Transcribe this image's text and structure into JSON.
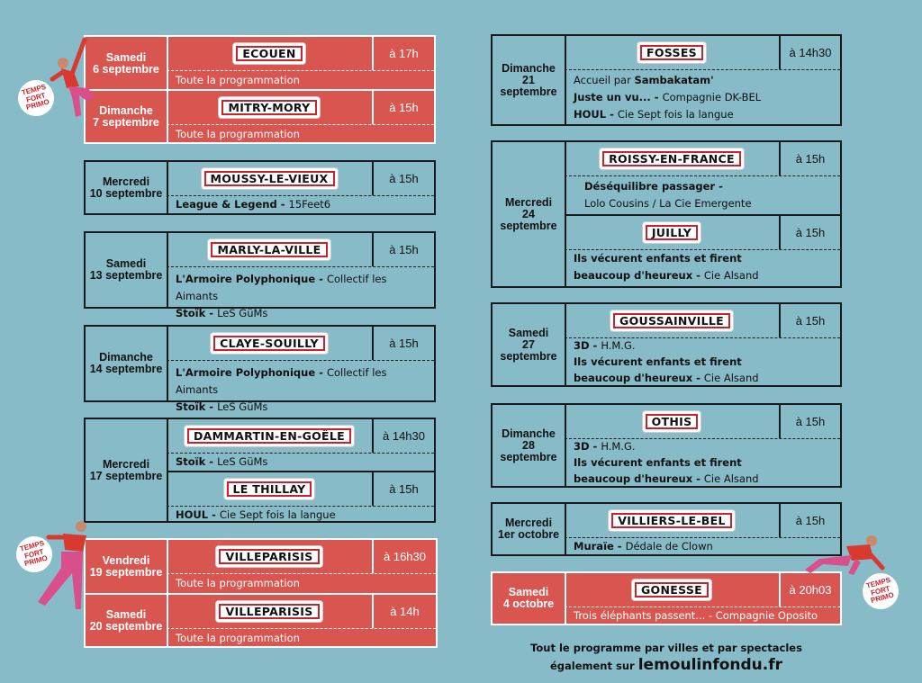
{
  "badge_text": "TEMPS FORT PRIMO",
  "footer": {
    "line1": "Tout le programme par villes et par spectacles",
    "line2_prefix": "également sur",
    "site": "lemoulinfondu.fr"
  },
  "events": [
    {
      "day": "Samedi",
      "date": "6 septembre",
      "city": "ECOUEN",
      "time": "à 17h",
      "lines": [
        [
          "",
          "Toute la programmation"
        ]
      ]
    },
    {
      "day": "Dimanche",
      "date": "7 septembre",
      "city": "MITRY-MORY",
      "time": "à 15h",
      "lines": [
        [
          "",
          "Toute la programmation"
        ]
      ]
    },
    {
      "day": "Mercredi",
      "date": "10 septembre",
      "city": "MOUSSY-LE-VIEUX",
      "time": "à 15h",
      "lines": [
        [
          "League & Legend - ",
          "15Feet6"
        ]
      ]
    },
    {
      "day": "Samedi",
      "date": "13 septembre",
      "city": "MARLY-LA-VILLE",
      "time": "à 15h",
      "lines": [
        [
          "L'Armoire Polyphonique - ",
          "Collectif les Aimants"
        ],
        [
          "Stoïk - ",
          "LeS GüMs"
        ]
      ]
    },
    {
      "day": "Dimanche",
      "date": "14 septembre",
      "city": "CLAYE-SOUILLY",
      "time": "à 15h",
      "lines": [
        [
          "L'Armoire Polyphonique - ",
          "Collectif les Aimants"
        ],
        [
          "Stoïk - ",
          "LeS GüMs"
        ]
      ]
    },
    {
      "day": "Mercredi",
      "date": "17 septembre",
      "city": "DAMMARTIN-EN-GOËLE",
      "time": "à 14h30",
      "lines": [
        [
          "Stoïk - ",
          "LeS GüMs"
        ]
      ],
      "city2": "LE THILLAY",
      "time2": "à 15h",
      "lines2": [
        [
          "HOUL - ",
          "Cie Sept fois la langue"
        ]
      ]
    },
    {
      "day": "Vendredi",
      "date": "19 septembre",
      "city": "VILLEPARISIS",
      "time": "à 16h30",
      "lines": [
        [
          "",
          "Toute la programmation"
        ]
      ]
    },
    {
      "day": "Samedi",
      "date": "20 septembre",
      "city": "VILLEPARISIS",
      "time": "à 14h",
      "lines": [
        [
          "",
          "Toute la programmation"
        ]
      ]
    },
    {
      "day": "Dimanche",
      "date": "21 septembre",
      "city": "FOSSES",
      "time": "à 14h30",
      "lines": [
        [
          "Accueil par ",
          "Sambakatam'"
        ],
        [
          "Juste un vu... - ",
          "Compagnie DK-BEL"
        ],
        [
          "HOUL - ",
          "Cie Sept fois la langue"
        ]
      ]
    },
    {
      "day": "Mercredi",
      "date": "24 septembre",
      "city": "ROISSY-EN-FRANCE",
      "time": "à 15h",
      "lines": [
        [
          "Déséquilibre passager -",
          ""
        ],
        [
          "",
          "Lolo Cousins / La Cie Emergente"
        ]
      ],
      "city2": "JUILLY",
      "time2": "à 15h",
      "lines2": [
        [
          "Ils vécurent enfants et firent",
          ""
        ],
        [
          "beaucoup d'heureux - ",
          "Cie Alsand"
        ]
      ]
    },
    {
      "day": "Samedi",
      "date": "27 septembre",
      "city": "GOUSSAINVILLE",
      "time": "à 15h",
      "lines": [
        [
          "3D - ",
          "H.M.G."
        ],
        [
          "Ils vécurent enfants et firent",
          ""
        ],
        [
          "beaucoup d'heureux - ",
          "Cie Alsand"
        ]
      ]
    },
    {
      "day": "Dimanche",
      "date": "28 septembre",
      "city": "OTHIS",
      "time": "à 15h",
      "lines": [
        [
          "3D - ",
          "H.M.G."
        ],
        [
          "Ils vécurent enfants et firent",
          ""
        ],
        [
          "beaucoup d'heureux - ",
          "Cie Alsand"
        ]
      ]
    },
    {
      "day": "Mercredi",
      "date": "1er octobre",
      "city": "VILLIERS-LE-BEL",
      "time": "à 15h",
      "lines": [
        [
          "Muraïe - ",
          "Dédale de Clown"
        ]
      ]
    },
    {
      "day": "Samedi",
      "date": "4 octobre",
      "city": "GONESSE",
      "time": "à 20h03",
      "lines": [
        [
          "Trois éléphants passent... - ",
          "Compagnie Oposito"
        ]
      ]
    }
  ],
  "colors": {
    "background": "#87bbc8",
    "highlight": "#d95650",
    "sign_border": "#c8232c",
    "dancer_top": "#d93a2f",
    "dancer_pants": "#d94f8c"
  }
}
